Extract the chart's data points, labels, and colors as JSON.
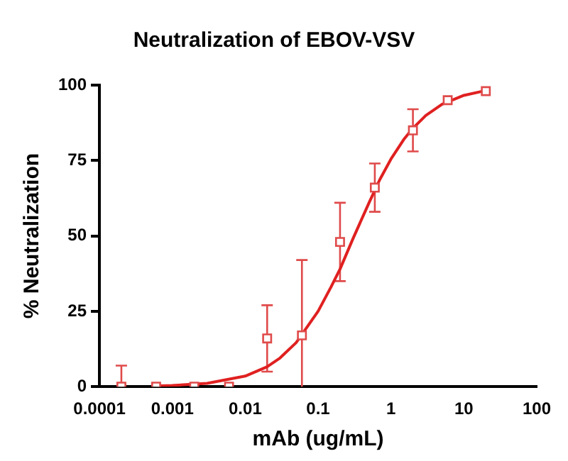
{
  "chart_data": {
    "type": "scatter",
    "title": "Neutralization of EBOV-VSV",
    "xlabel": "mAb (ug/mL)",
    "ylabel": "% Neutralization",
    "log": "x",
    "grid": false,
    "legend": false,
    "xlim": [
      0.0001,
      100
    ],
    "xticks": [
      0.0001,
      0.001,
      0.01,
      0.1,
      1,
      10,
      100
    ],
    "ylim": [
      0,
      100
    ],
    "yticks": [
      0,
      25,
      50,
      75,
      100
    ],
    "series": [
      {
        "type": "scatter",
        "color": "#e04a4a",
        "marker": "square",
        "x": [
          0.0002,
          0.0006,
          0.002,
          0.006,
          0.02,
          0.06,
          0.2,
          0.6,
          2,
          6,
          20
        ],
        "values": [
          0,
          0,
          0,
          0,
          16,
          17,
          48,
          66,
          85,
          95,
          98
        ],
        "errors": [
          [
            0,
            7
          ],
          null,
          null,
          null,
          [
            5,
            27
          ],
          [
            0,
            42
          ],
          [
            35,
            61
          ],
          [
            58,
            74
          ],
          [
            78,
            92
          ],
          null,
          null
        ]
      },
      {
        "type": "line",
        "color": "#e02020",
        "marker": "none",
        "line_style": "solid",
        "x": [
          0.0006,
          0.001,
          0.003,
          0.01,
          0.02,
          0.03,
          0.05,
          0.1,
          0.15,
          0.2,
          0.3,
          0.5,
          0.7,
          1,
          1.5,
          2,
          3,
          5,
          10,
          20
        ],
        "values": [
          0.2,
          0.4,
          1.1,
          3.5,
          6.6,
          9.5,
          14.6,
          25,
          33,
          39,
          49,
          61,
          68.6,
          75.5,
          82,
          85.7,
          89.9,
          93.6,
          96.6,
          98.2
        ]
      }
    ]
  }
}
